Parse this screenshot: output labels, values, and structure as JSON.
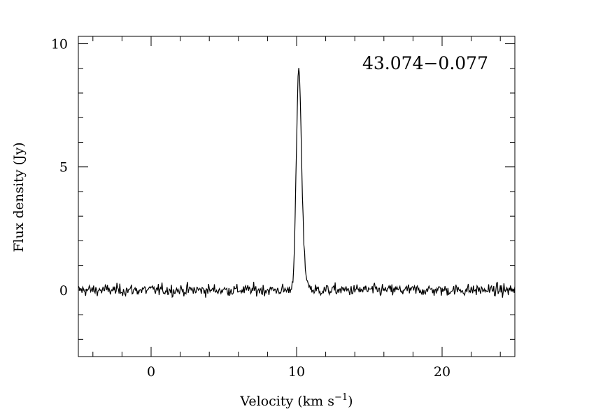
{
  "chart_data": {
    "type": "line",
    "title": "",
    "source_name": "43.074−0.077",
    "xlabel_text": "Velocity (km s",
    "xlabel_sup": "−1",
    "xlabel_close": ")",
    "ylabel": "Flux density (Jy)",
    "xlim": [
      -5,
      25
    ],
    "ylim": [
      -2.7,
      10.3
    ],
    "x_ticks": [
      {
        "value": 0,
        "label": "0"
      },
      {
        "value": 10,
        "label": "10"
      },
      {
        "value": 20,
        "label": "20"
      }
    ],
    "y_ticks": [
      {
        "value": 0,
        "label": "0"
      },
      {
        "value": 5,
        "label": "5"
      },
      {
        "value": 10,
        "label": "10"
      }
    ],
    "x_minor_step": 2,
    "y_minor_step": 1,
    "grid": false,
    "series": [
      {
        "line_color": "#000000",
        "noise_rms": 0.12,
        "peak": {
          "center": 10.15,
          "amplitude": 8.6,
          "sigma": 0.17
        },
        "shoulder": {
          "center": 10.45,
          "amplitude": 0.9,
          "sigma": 0.22
        },
        "x_start": -5,
        "x_end": 25,
        "x_step": 0.05
      }
    ]
  }
}
